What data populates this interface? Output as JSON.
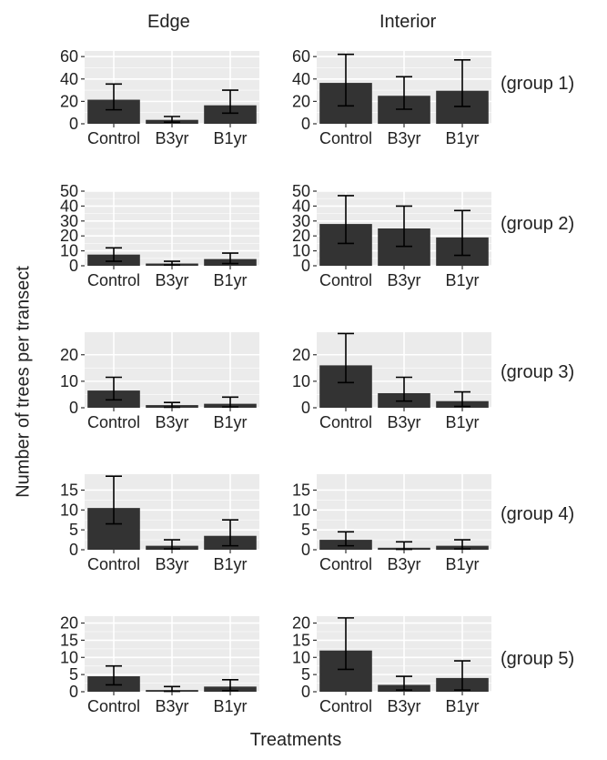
{
  "panel_columns": [
    "Edge",
    "Interior"
  ],
  "row_labels": [
    "(group 1)",
    "(group 2)",
    "(group 3)",
    "(group 4)",
    "(group 5)"
  ],
  "xlabel": "Treatments",
  "ylabel": "Number of trees per transect",
  "colors": {
    "bar": "#333333",
    "panel_bg": "#ebebeb",
    "grid": "#ffffff",
    "text": "#222222"
  },
  "chart_data": {
    "type": "bar",
    "categories": [
      "Control",
      "B3yr",
      "B1yr"
    ],
    "panels": [
      {
        "column": "Edge",
        "row": "(group 1)",
        "ylim": [
          0,
          65
        ],
        "yticks": [
          0,
          20,
          40,
          60
        ],
        "values": [
          21.5,
          3.5,
          16.5
        ],
        "err_low": [
          12.5,
          1.5,
          9.5
        ],
        "err_high": [
          35.5,
          6.5,
          30.0
        ]
      },
      {
        "column": "Interior",
        "row": "(group 1)",
        "ylim": [
          0,
          65
        ],
        "yticks": [
          0,
          20,
          40,
          60
        ],
        "values": [
          36.5,
          25.0,
          29.5
        ],
        "err_low": [
          16.0,
          13.0,
          15.5
        ],
        "err_high": [
          62.0,
          42.0,
          57.0
        ]
      },
      {
        "column": "Edge",
        "row": "(group 2)",
        "ylim": [
          0,
          50
        ],
        "yticks": [
          0,
          10,
          20,
          30,
          40,
          50
        ],
        "values": [
          7.5,
          1.5,
          4.5
        ],
        "err_low": [
          3.0,
          0.5,
          1.5
        ],
        "err_high": [
          12.0,
          3.0,
          8.5
        ]
      },
      {
        "column": "Interior",
        "row": "(group 2)",
        "ylim": [
          0,
          50
        ],
        "yticks": [
          0,
          10,
          20,
          30,
          40,
          50
        ],
        "values": [
          28.0,
          25.0,
          19.0
        ],
        "err_low": [
          15.0,
          13.0,
          7.0
        ],
        "err_high": [
          47.0,
          40.0,
          37.0
        ]
      },
      {
        "column": "Edge",
        "row": "(group 3)",
        "ylim": [
          0,
          28.5
        ],
        "yticks": [
          0,
          10,
          20
        ],
        "values": [
          6.5,
          1.0,
          1.5
        ],
        "err_low": [
          3.0,
          0.2,
          0.3
        ],
        "err_high": [
          11.5,
          2.0,
          4.0
        ]
      },
      {
        "column": "Interior",
        "row": "(group 3)",
        "ylim": [
          0,
          28.5
        ],
        "yticks": [
          0,
          10,
          20
        ],
        "values": [
          16.0,
          5.5,
          2.5
        ],
        "err_low": [
          9.5,
          2.5,
          0.5
        ],
        "err_high": [
          28.0,
          11.5,
          6.0
        ]
      },
      {
        "column": "Edge",
        "row": "(group 4)",
        "ylim": [
          0,
          19
        ],
        "yticks": [
          0,
          5,
          10,
          15
        ],
        "values": [
          10.5,
          1.0,
          3.5
        ],
        "err_low": [
          6.5,
          0.2,
          1.0
        ],
        "err_high": [
          18.5,
          2.5,
          7.5
        ]
      },
      {
        "column": "Interior",
        "row": "(group 4)",
        "ylim": [
          0,
          19
        ],
        "yticks": [
          0,
          5,
          10,
          15
        ],
        "values": [
          2.5,
          0.5,
          1.0
        ],
        "err_low": [
          1.0,
          0.1,
          0.2
        ],
        "err_high": [
          4.5,
          2.0,
          2.5
        ]
      },
      {
        "column": "Edge",
        "row": "(group 5)",
        "ylim": [
          0,
          22
        ],
        "yticks": [
          0,
          5,
          10,
          15,
          20
        ],
        "values": [
          4.5,
          0.5,
          1.5
        ],
        "err_low": [
          2.0,
          0.1,
          0.3
        ],
        "err_high": [
          7.5,
          1.5,
          3.5
        ]
      },
      {
        "column": "Interior",
        "row": "(group 5)",
        "ylim": [
          0,
          22
        ],
        "yticks": [
          0,
          5,
          10,
          15,
          20
        ],
        "values": [
          12.0,
          2.0,
          4.0
        ],
        "err_low": [
          6.5,
          0.5,
          0.5
        ],
        "err_high": [
          21.5,
          4.5,
          9.0
        ]
      }
    ]
  }
}
